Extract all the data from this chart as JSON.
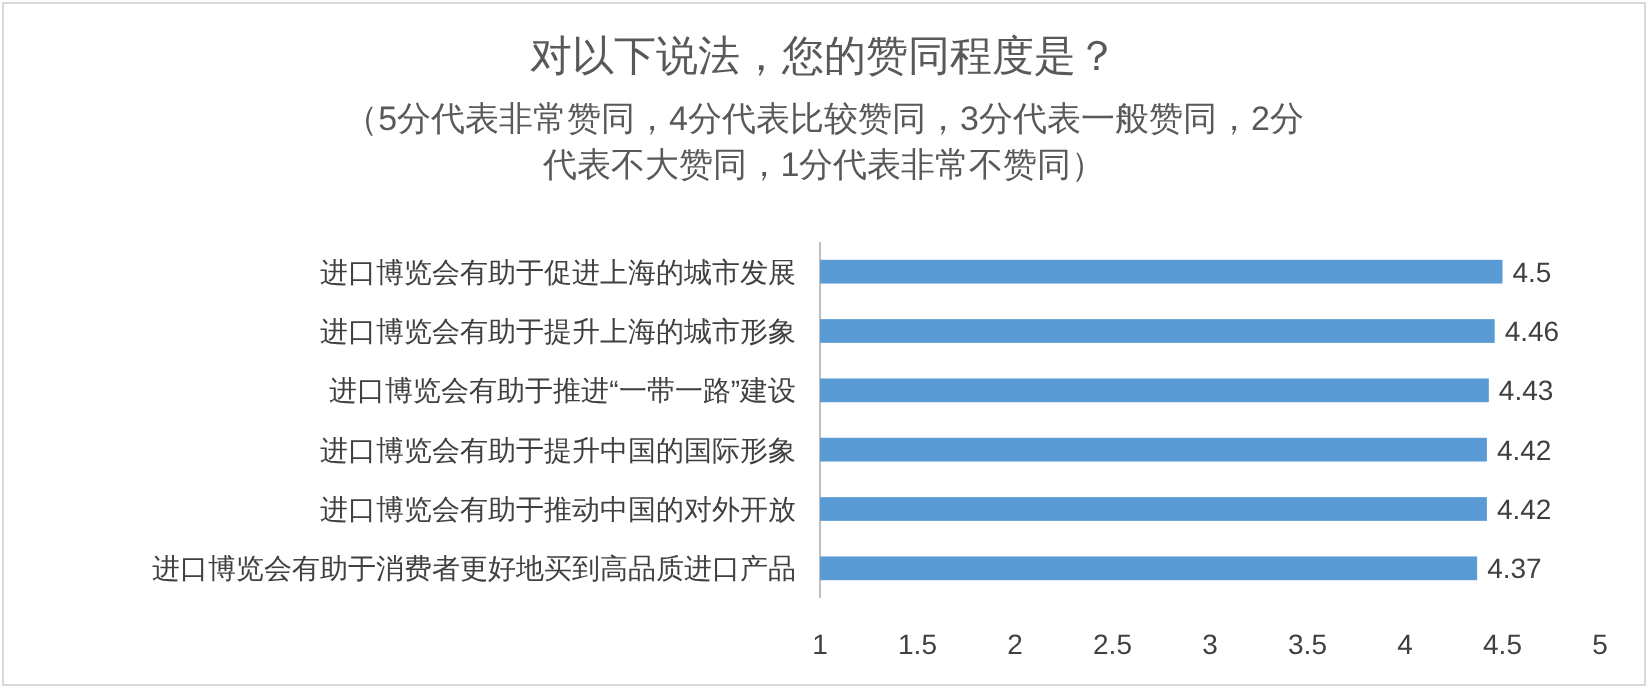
{
  "chart_data": {
    "type": "bar",
    "orientation": "horizontal",
    "title": "对以下说法，您的赞同程度是？",
    "subtitle": "（5分代表非常赞同，4分代表比较赞同，3分代表一般赞同，2分代表不大赞同，1分代表非常不赞同）",
    "categories": [
      "进口博览会有助于促进上海的城市发展",
      "进口博览会有助于提升上海的城市形象",
      "进口博览会有助于推进“一带一路”建设",
      "进口博览会有助于提升中国的国际形象",
      "进口博览会有助于推动中国的对外开放",
      "进口博览会有助于消费者更好地买到高品质进口产品"
    ],
    "values": [
      4.5,
      4.46,
      4.43,
      4.42,
      4.42,
      4.37
    ],
    "color": "#5b9bd5",
    "xlim": [
      1,
      5
    ],
    "xticks": [
      1,
      1.5,
      2,
      2.5,
      3,
      3.5,
      4,
      4.5,
      5
    ],
    "data_labels": true
  }
}
